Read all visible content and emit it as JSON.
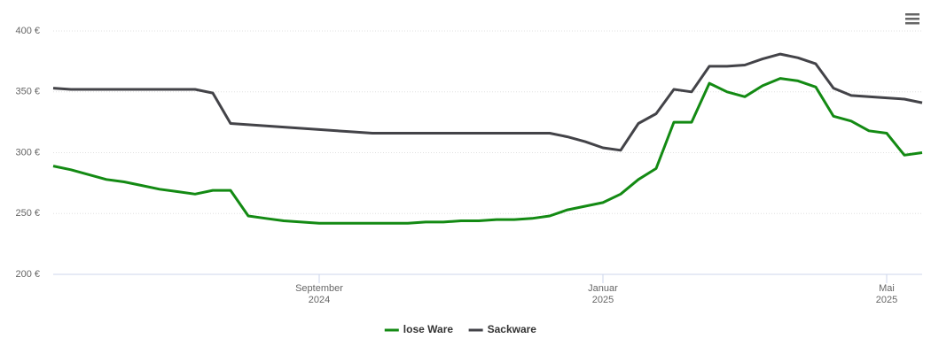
{
  "chart_data": {
    "type": "line",
    "categories": [
      null,
      null,
      null,
      null,
      null,
      null,
      null,
      null,
      null,
      null,
      null,
      null,
      null,
      null,
      null,
      "September\n2024",
      null,
      null,
      null,
      null,
      null,
      null,
      null,
      null,
      null,
      null,
      null,
      null,
      null,
      null,
      null,
      "Januar\n2025",
      null,
      null,
      null,
      null,
      null,
      null,
      null,
      null,
      null,
      null,
      null,
      null,
      null,
      null,
      null,
      "Mai\n2025",
      null,
      null
    ],
    "series": [
      {
        "name": "lose Ware",
        "color": "#138a13",
        "values": [
          289,
          286,
          282,
          278,
          276,
          273,
          270,
          268,
          266,
          269,
          269,
          248,
          246,
          244,
          243,
          242,
          242,
          242,
          242,
          242,
          242,
          243,
          243,
          244,
          244,
          245,
          245,
          246,
          248,
          253,
          256,
          259,
          266,
          278,
          287,
          325,
          325,
          357,
          350,
          346,
          355,
          361,
          359,
          354,
          330,
          326,
          318,
          316,
          298,
          300
        ]
      },
      {
        "name": "Sackware",
        "color": "#434348",
        "values": [
          353,
          352,
          352,
          352,
          352,
          352,
          352,
          352,
          352,
          349,
          324,
          323,
          322,
          321,
          320,
          319,
          318,
          317,
          316,
          316,
          316,
          316,
          316,
          316,
          316,
          316,
          316,
          316,
          316,
          313,
          309,
          304,
          302,
          324,
          332,
          352,
          350,
          371,
          371,
          372,
          377,
          381,
          378,
          373,
          353,
          347,
          346,
          345,
          344,
          341
        ]
      }
    ],
    "ylim": [
      200,
      400
    ],
    "yticks": [
      {
        "value": 200,
        "label": "200 €"
      },
      {
        "value": 250,
        "label": "250 €"
      },
      {
        "value": 300,
        "label": "300 €"
      },
      {
        "value": 350,
        "label": "350 €"
      },
      {
        "value": 400,
        "label": "400 €"
      }
    ],
    "grid": true
  }
}
